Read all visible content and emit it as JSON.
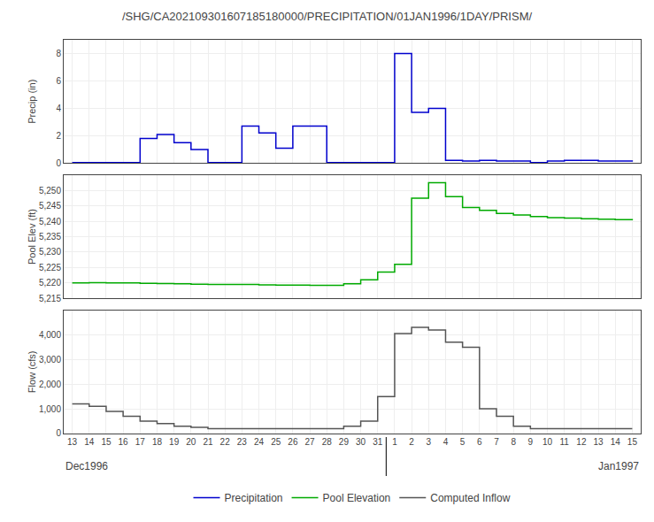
{
  "chart_data": [
    {
      "type": "step",
      "title": "/SHG/CA202109301607185180000/PRECIPITATION/01JAN1996/1DAY/PRISM/",
      "categories": [
        "13",
        "14",
        "15",
        "16",
        "17",
        "18",
        "19",
        "20",
        "21",
        "22",
        "23",
        "24",
        "25",
        "26",
        "27",
        "28",
        "29",
        "30",
        "31",
        "1",
        "2",
        "3",
        "4",
        "5",
        "6",
        "7",
        "8",
        "9",
        "10",
        "11",
        "12",
        "13",
        "14",
        "15"
      ],
      "series": [
        {
          "name": "Precipitation",
          "color": "#0000cd",
          "values": [
            0.05,
            0.05,
            0.05,
            0.05,
            1.8,
            2.1,
            1.5,
            1.0,
            0.05,
            0.05,
            2.7,
            2.2,
            1.1,
            2.7,
            2.7,
            0.05,
            0.05,
            0.05,
            0.05,
            8.0,
            3.7,
            4.0,
            0.2,
            0.15,
            0.2,
            0.15,
            0.15,
            0.05,
            0.15,
            0.2,
            0.2,
            0.15,
            0.15,
            0.2
          ]
        }
      ],
      "ylabel": "Precip (in)",
      "ylim": [
        0,
        9
      ],
      "yticks": [
        0,
        2,
        4,
        6,
        8
      ],
      "grid": true,
      "tick_labels": "y",
      "legend": "bottom"
    },
    {
      "type": "step",
      "categories": [
        "13",
        "14",
        "15",
        "16",
        "17",
        "18",
        "19",
        "20",
        "21",
        "22",
        "23",
        "24",
        "25",
        "26",
        "27",
        "28",
        "29",
        "30",
        "31",
        "1",
        "2",
        "3",
        "4",
        "5",
        "6",
        "7",
        "8",
        "9",
        "10",
        "11",
        "12",
        "13",
        "14",
        "15"
      ],
      "series": [
        {
          "name": "Pool Elevation",
          "color": "#00aa00",
          "values": [
            5220.0,
            5220.1,
            5220.0,
            5220.0,
            5219.9,
            5219.8,
            5219.7,
            5219.6,
            5219.5,
            5219.5,
            5219.5,
            5219.4,
            5219.3,
            5219.3,
            5219.2,
            5219.2,
            5219.7,
            5221.0,
            5223.5,
            5226.0,
            5247.5,
            5252.5,
            5248.0,
            5244.5,
            5243.5,
            5242.5,
            5242.0,
            5241.5,
            5241.2,
            5241.0,
            5240.8,
            5240.7,
            5240.5,
            5240.3
          ]
        }
      ],
      "ylabel": "Pool Elev (ft)",
      "ylim": [
        5215,
        5255
      ],
      "yticks": [
        {
          "value": 5215,
          "label": "5,215"
        },
        {
          "value": 5220,
          "label": "5,220"
        },
        {
          "value": 5225,
          "label": "5,225"
        },
        {
          "value": 5230,
          "label": "5,230"
        },
        {
          "value": 5235,
          "label": "5,235"
        },
        {
          "value": 5240,
          "label": "5,240"
        },
        {
          "value": 5245,
          "label": "5,245"
        },
        {
          "value": 5250,
          "label": "5,250"
        }
      ],
      "grid": true,
      "tick_labels": "y",
      "legend": "bottom"
    },
    {
      "type": "step",
      "categories": [
        "13",
        "14",
        "15",
        "16",
        "17",
        "18",
        "19",
        "20",
        "21",
        "22",
        "23",
        "24",
        "25",
        "26",
        "27",
        "28",
        "29",
        "30",
        "31",
        "1",
        "2",
        "3",
        "4",
        "5",
        "6",
        "7",
        "8",
        "9",
        "10",
        "11",
        "12",
        "13",
        "14",
        "15"
      ],
      "series": [
        {
          "name": "Computed Inflow",
          "color": "#555555",
          "values": [
            1200,
            1100,
            900,
            700,
            500,
            400,
            300,
            250,
            200,
            200,
            200,
            200,
            200,
            200,
            200,
            200,
            300,
            500,
            1500,
            4050,
            4300,
            4200,
            3700,
            3500,
            1000,
            700,
            300,
            200,
            200,
            200,
            200,
            200,
            200,
            200
          ]
        }
      ],
      "ylabel": "Flow (cfs)",
      "ylim": [
        0,
        5000
      ],
      "yticks": [
        0,
        {
          "value": 1000,
          "label": "1,000"
        },
        {
          "value": 2000,
          "label": "2,000"
        },
        {
          "value": 3000,
          "label": "3,000"
        },
        {
          "value": 4000,
          "label": "4,000"
        }
      ],
      "grid": true,
      "annotations": [
        "Dec1996",
        "Jan1997"
      ],
      "legend": "bottom"
    }
  ]
}
